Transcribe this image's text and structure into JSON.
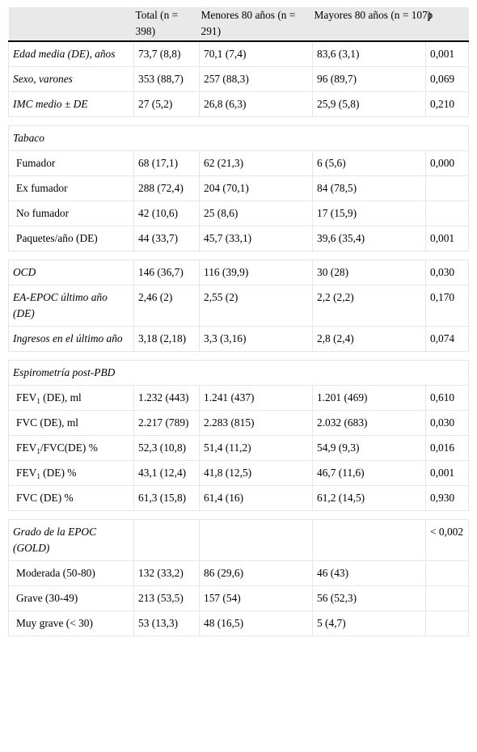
{
  "header": {
    "col0": "",
    "col1": "Total (n = 398)",
    "col2": "Menores 80 años (n = 291)",
    "col3": "Mayores 80 años (n = 107)",
    "col4": "p"
  },
  "rows": {
    "edad": {
      "label": "Edad media (DE), años",
      "total": "73,7 (8,8)",
      "menores": "70,1 (7,4)",
      "mayores": "83,6 (3,1)",
      "p": "0,001"
    },
    "sexo": {
      "label": "Sexo, varones",
      "total": "353 (88,7)",
      "menores": "257 (88,3)",
      "mayores": "96 (89,7)",
      "p": "0,069"
    },
    "imc": {
      "label": "IMC medio ± DE",
      "total": "27 (5,2)",
      "menores": "26,8 (6,3)",
      "mayores": "25,9 (5,8)",
      "p": "0,210"
    },
    "tabaco": {
      "label": "Tabaco"
    },
    "fumador": {
      "label": "Fumador",
      "total": "68 (17,1)",
      "menores": "62 (21,3)",
      "mayores": "6 (5,6)",
      "p": "0,000"
    },
    "exfumador": {
      "label": "Ex fumador",
      "total": "288 (72,4)",
      "menores": "204 (70,1)",
      "mayores": "84 (78,5)",
      "p": ""
    },
    "nofumador": {
      "label": "No fumador",
      "total": "42 (10,6)",
      "menores": "25 (8,6)",
      "mayores": "17 (15,9)",
      "p": ""
    },
    "paquetes": {
      "label": "Paquetes/año (DE)",
      "total": "44 (33,7)",
      "menores": "45,7 (33,1)",
      "mayores": "39,6 (35,4)",
      "p": "0,001"
    },
    "ocd": {
      "label": "OCD",
      "total": "146 (36,7)",
      "menores": "116 (39,9)",
      "mayores": "30 (28)",
      "p": "0,030"
    },
    "eaepoc": {
      "label": "EA-EPOC último año (DE)",
      "total": "2,46 (2)",
      "menores": "2,55 (2)",
      "mayores": "2,2 (2,2)",
      "p": "0,170"
    },
    "ingresos": {
      "label": "Ingresos en el último año",
      "total": "3,18 (2,18)",
      "menores": "3,3 (3,16)",
      "mayores": "2,8 (2,4)",
      "p": "0,074"
    },
    "espiro": {
      "label": "Espirometría post-PBD"
    },
    "fev1ml": {
      "label_pre": "FEV",
      "label_sub": "1",
      "label_post": " (DE), ml",
      "total": "1.232 (443)",
      "menores": "1.241 (437)",
      "mayores": "1.201 (469)",
      "p": "0,610"
    },
    "fvcml": {
      "label": "FVC (DE), ml",
      "total": "2.217 (789)",
      "menores": "2.283 (815)",
      "mayores": "2.032 (683)",
      "p": "0,030"
    },
    "fev1fvc": {
      "label_pre": "FEV",
      "label_sub": "1",
      "label_post": "/FVC(DE) %",
      "total": "52,3 (10,8)",
      "menores": "51,4 (11,2)",
      "mayores": "54,9 (9,3)",
      "p": "0,016"
    },
    "fev1pct": {
      "label_pre": "FEV",
      "label_sub": "1",
      "label_post": " (DE) %",
      "total": "43,1 (12,4)",
      "menores": "41,8 (12,5)",
      "mayores": "46,7 (11,6)",
      "p": "0,001"
    },
    "fvcpct": {
      "label": "FVC (DE) %",
      "total": "61,3 (15,8)",
      "menores": "61,4 (16)",
      "mayores": "61,2 (14,5)",
      "p": "0,930"
    },
    "grado": {
      "label": "Grado de la EPOC (GOLD)",
      "total": "",
      "menores": "",
      "mayores": "",
      "p": "< 0,002"
    },
    "moderada": {
      "label": "Moderada (50-80)",
      "total": "132 (33,2)",
      "menores": "86 (29,6)",
      "mayores": "46 (43)",
      "p": ""
    },
    "grave": {
      "label": "Grave (30-49)",
      "total": "213 (53,5)",
      "menores": "157 (54)",
      "mayores": "56 (52,3)",
      "p": ""
    },
    "muygrave": {
      "label": "Muy grave (< 30)",
      "total": "53 (13,3)",
      "menores": "48 (16,5)",
      "mayores": "5 (4,7)",
      "p": ""
    }
  }
}
